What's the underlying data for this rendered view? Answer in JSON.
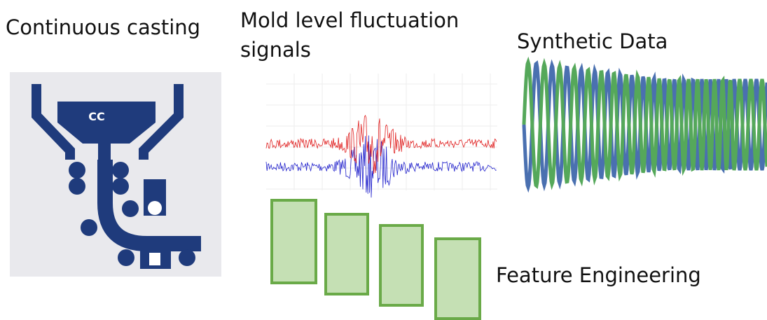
{
  "panels": {
    "casting": {
      "label": "Continuous casting",
      "icon_text": "CC"
    },
    "signals": {
      "label": "Mold level fluctuation signals"
    },
    "synthetic": {
      "label": "Synthetic Data"
    },
    "features": {
      "label": "Feature Engineering"
    }
  }
}
